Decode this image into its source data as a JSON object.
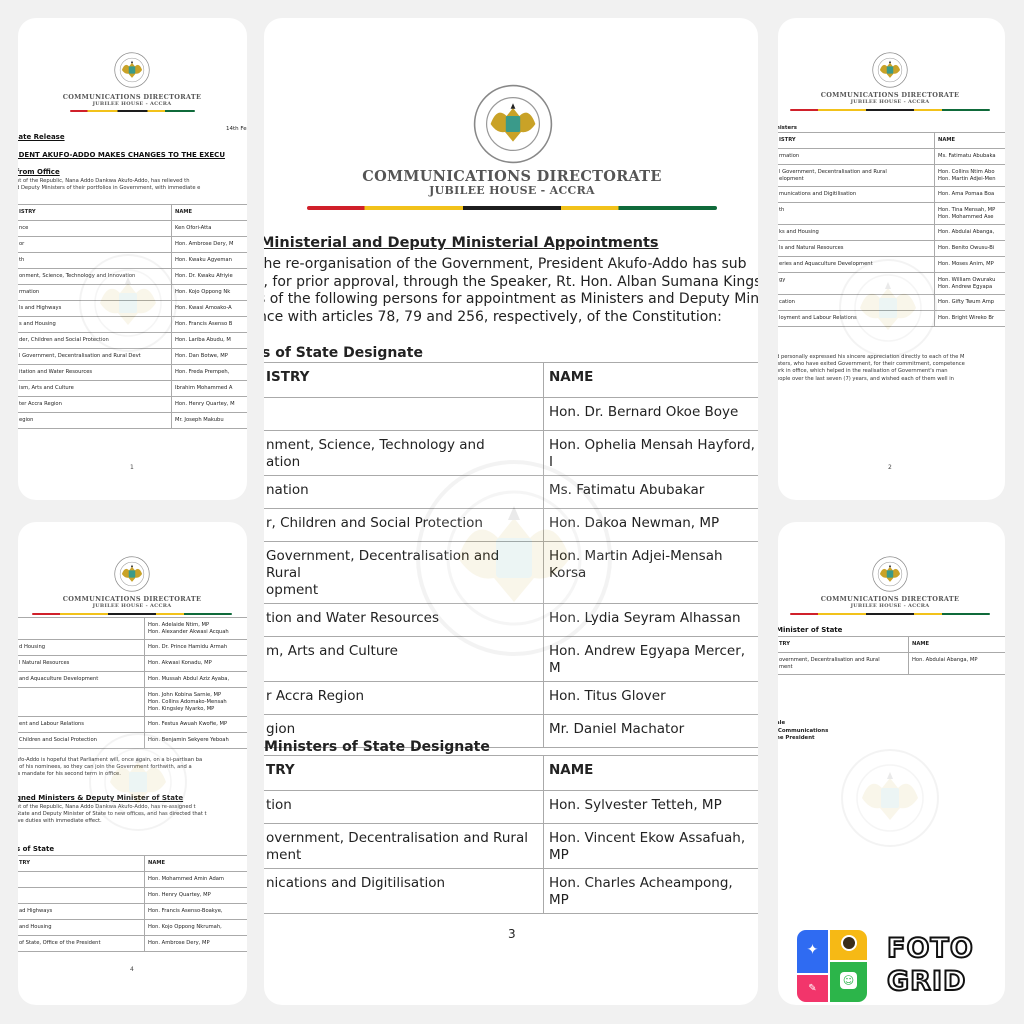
{
  "header": {
    "directorate": "COMMUNICATIONS DIRECTORATE",
    "address": "JUBILEE HOUSE - ACCRA",
    "seal_text_top": "OFFICE OF THE PRESIDENT",
    "seal_text_bottom": "GHANA",
    "flag_colors": [
      "#d0202a",
      "#f2c21a",
      "#1d1d1d",
      "#f2c21a",
      "#0f6a3a"
    ]
  },
  "page1": {
    "date": "14th Fe",
    "release_label": "iate Release",
    "title": "IDENT AKUFO-ADDO MAKES CHANGES TO THE EXECU",
    "office_label": "from Office",
    "paragraph": "nt of the Republic, Nana Addo Dankwa Akufo-Addo, has relieved th\nd Deputy Ministers of their portfolios in Government, with immediate e",
    "table": {
      "headers": [
        "ISTRY",
        "NAME"
      ],
      "rows": [
        [
          "nce",
          "Ken Ofori-Atta"
        ],
        [
          "or",
          "Hon. Ambrose Dery, M"
        ],
        [
          "th",
          "Hon. Kwaku Agyeman"
        ],
        [
          "onment, Science, Technology and Innovation",
          "Hon. Dr. Kwaku Afriyie"
        ],
        [
          "rmation",
          "Hon. Kojo Oppong Nk"
        ],
        [
          "ls and Highways",
          "Hon. Kwasi Amoako-A"
        ],
        [
          "s and Housing",
          "Hon. Francis Asenso B"
        ],
        [
          "der, Children and Social Protection",
          "Hon. Lariba Abudu, M"
        ],
        [
          "l Government, Decentralisation and Rural Devt",
          "Hon. Dan Botwe, MP"
        ],
        [
          "itation and Water Resources",
          "Hon. Freda Prempeh,"
        ],
        [
          "ism, Arts and Culture",
          "Ibrahim Mohammed A"
        ],
        [
          "ter Accra Region",
          "Hon. Henry Quartey, M"
        ],
        [
          "egion",
          "Mr. Joseph Makubu"
        ]
      ]
    },
    "page_number": "1"
  },
  "page2": {
    "section_label": "nisters",
    "table": {
      "headers": [
        "ISTRY",
        "NAME"
      ],
      "rows": [
        [
          "rmation",
          "Ms. Fatimatu Abubaka"
        ],
        [
          "l Government, Decentralisation and Rural\nelopment",
          "Hon. Collins Ntim Abo\nHon. Martin Adjei-Men"
        ],
        [
          "munications and Digitilisation",
          "Hon. Ama Pomaa Boa"
        ],
        [
          "th",
          "Hon. Tina Mensah, MP\nHon. Mohammed Ase"
        ],
        [
          "ks and Housing",
          "Hon. Abdulai Abanga,"
        ],
        [
          "ls and Natural Resources",
          "Hon. Benito Owusu-Bi"
        ],
        [
          "eries and Aquaculture Development",
          "Hon. Moses Anim, MP"
        ],
        [
          "gy",
          "Hon. William Owuraku\nHon. Andrew Egyapa"
        ],
        [
          "cation",
          "Hon. Gifty Twum Amp"
        ],
        [
          "loyment and Labour Relations",
          "Hon. Bright Wireko Br"
        ]
      ]
    },
    "paragraph": "d personally expressed his sincere appreciation directly to each of the M\nisters, who have exited Government, for their commitment, competence\nork in office, which helped in the realisation of Government's man\neople over the last seven (7) years, and wished each of them well in",
    "page_number": "2"
  },
  "page3": {
    "title": "Ministerial and Deputy Ministerial Appointments",
    "paragraph": [
      " the re-organisation of the Government, President Akufo-Addo has sub",
      "t, for prior approval, through the Speaker, Rt. Hon. Alban Sumana Kingsfor",
      "s of the following persons for appointment as Ministers and Deputy Minister",
      "nce with articles 78, 79 and 256, respectively, of the Constitution:"
    ],
    "section1": "s of State Designate",
    "table1": {
      "headers": [
        "ISTRY",
        "NAME"
      ],
      "rows": [
        [
          "",
          "Hon. Dr. Bernard Okoe Boye"
        ],
        [
          "nment, Science, Technology and\nation",
          "Hon. Ophelia Mensah Hayford, I"
        ],
        [
          "nation",
          "Ms. Fatimatu Abubakar"
        ],
        [
          "r, Children and Social Protection",
          "Hon. Dakoa Newman, MP"
        ],
        [
          "Government, Decentralisation and Rural\nopment",
          "Hon. Martin Adjei-Mensah Korsa"
        ],
        [
          "tion and Water Resources",
          "Hon. Lydia Seyram Alhassan"
        ],
        [
          "m, Arts and Culture",
          "Hon. Andrew Egyapa Mercer, M"
        ],
        [
          "r Accra Region",
          "Hon. Titus Glover"
        ],
        [
          "gion",
          "Mr. Daniel Machator"
        ]
      ]
    },
    "section2": "Ministers of State Designate",
    "table2": {
      "headers": [
        "TRY",
        "NAME"
      ],
      "rows": [
        [
          "tion",
          "Hon. Sylvester Tetteh, MP"
        ],
        [
          "overnment, Decentralisation and Rural\nment",
          "Hon. Vincent Ekow Assafuah, MP"
        ],
        [
          "nications and Digitilisation",
          "Hon. Charles Acheampong, MP"
        ]
      ]
    },
    "page_number": "3"
  },
  "page4": {
    "table1": {
      "rows": [
        [
          "",
          "Hon. Adelaide Ntim, MP\nHon. Alexander Akwasi Acquah"
        ],
        [
          "d Housing",
          "Hon. Dr. Prince Hamidu Armah"
        ],
        [
          "l Natural Resources",
          "Hon. Akwasi Konadu, MP"
        ],
        [
          "and Aquaculture Development",
          "Hon. Mussah Abdul Aziz Ayaba,"
        ],
        [
          "",
          "Hon. John Kobina Sarnie, MP\nHon. Collins Adomako-Mensah\nHon. Kingsley Nyarko, MP"
        ],
        [
          "ent and Labour Relations",
          "Hon. Festus Awuah Kwofie, MP"
        ],
        [
          "Children and Social Protection",
          "Hon. Benjamin Sekyere Yeboah"
        ]
      ]
    },
    "paragraph1": "ufo-Addo is hopeful that Parliament will, once again, on a bi-partisan ba\nl of his nominees, so they can join the Government forthwith, and a\nis mandate for his second term in office.",
    "heading": "gned Ministers & Deputy Minister of State",
    "paragraph2": "nt of the Republic, Nana Addo Dankwa Akufo-Addo, has re-assigned t\nState and Deputy Minister of State to new offices, and has directed that t\nive duties with immediate effect.",
    "section": "s of State",
    "table2": {
      "headers": [
        "TRY",
        "NAME"
      ],
      "rows": [
        [
          "",
          "Hon. Mohammed Amin Adam"
        ],
        [
          "",
          "Hon. Henry Quartey, MP"
        ],
        [
          "ad Highways",
          "Hon. Francis Asenso-Boakye,"
        ],
        [
          "and Housing",
          "Hon. Kojo Oppong Nkrumah,"
        ],
        [
          "of State, Office of the President",
          "Hon. Ambrose Dery, MP"
        ]
      ]
    },
    "page_number": "4"
  },
  "page5": {
    "section": "Minister of State",
    "table": {
      "headers": [
        "TRY",
        "NAME"
      ],
      "rows": [
        [
          "overnment, Decentralisation and Rural\nment",
          "Hon. Abdulai Abanga, MP"
        ]
      ]
    },
    "signature": "-\n\nale\n Communications\nhe President"
  },
  "watermark": {
    "brand": "FOTO GRID",
    "line1": "FOTO",
    "line2": "GRID",
    "colors": {
      "blue": "#2f6bf2",
      "yellow": "#f6b915",
      "pink": "#f2356b",
      "green": "#2cb54a"
    }
  }
}
